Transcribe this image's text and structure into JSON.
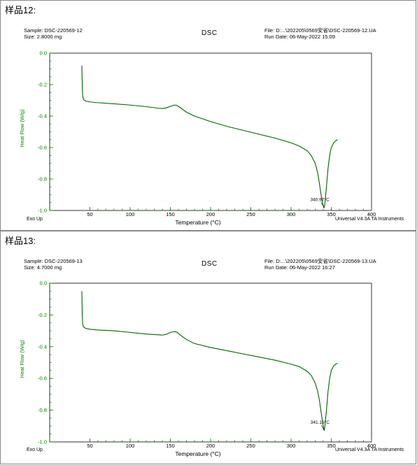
{
  "panels": [
    {
      "sample_title": "样品12:",
      "header_left": [
        "Sample: DSC-220569-12",
        "Size:  2.8000 mg"
      ],
      "header_center": "DSC",
      "header_right": [
        "File: D:...\\202205\\0569安省\\DSC-220569-12.UA",
        "Run Date: 06-May-2022 15:09"
      ],
      "footer_left": "Exo Up",
      "footer_right": "Universal V4.3A TA Instruments"
    },
    {
      "sample_title": "样品13:",
      "header_left": [
        "Sample: DSC-220569-13",
        "Size:  4.7000 mg"
      ],
      "header_center": "DSC",
      "header_right": [
        "File: D:...\\202205\\0569安省\\DSC-220569-13.UA",
        "Run Date: 06-May-2022 16:27"
      ],
      "footer_left": "Exo Up",
      "footer_right": "Universal V4.3A TA Instruments"
    }
  ],
  "chart_data": [
    {
      "type": "line",
      "title": "DSC",
      "xlabel": "Temperature (°C)",
      "ylabel": "Heat Flow (W/g)",
      "xlim": [
        0,
        400
      ],
      "ylim": [
        -1.0,
        0.0
      ],
      "xticks": [
        50,
        100,
        150,
        200,
        250,
        300,
        350,
        400
      ],
      "yticks": [
        0.0,
        -0.2,
        -0.4,
        -0.6,
        -0.8,
        -1.0
      ],
      "ytick_labels": [
        "0.0",
        "-0.2",
        "-0.4",
        "-0.6",
        "-0.8",
        "-1.0"
      ],
      "grid": false,
      "color": "#006400",
      "series": [
        {
          "x": [
            40,
            40.5,
            41,
            42,
            45,
            50,
            60,
            80,
            100,
            120,
            135,
            140,
            145,
            150,
            155,
            158,
            162,
            170,
            180,
            200,
            220,
            240,
            260,
            280,
            300,
            310,
            320,
            325,
            330,
            333,
            335,
            337,
            339,
            340.97,
            342,
            344,
            346,
            348,
            350,
            353,
            356,
            358
          ],
          "y": [
            -0.08,
            -0.2,
            -0.27,
            -0.295,
            -0.305,
            -0.31,
            -0.315,
            -0.322,
            -0.33,
            -0.34,
            -0.35,
            -0.352,
            -0.348,
            -0.338,
            -0.33,
            -0.332,
            -0.345,
            -0.375,
            -0.4,
            -0.435,
            -0.465,
            -0.49,
            -0.515,
            -0.54,
            -0.57,
            -0.59,
            -0.62,
            -0.65,
            -0.7,
            -0.76,
            -0.82,
            -0.89,
            -0.95,
            -0.985,
            -0.96,
            -0.85,
            -0.73,
            -0.65,
            -0.6,
            -0.57,
            -0.555,
            -0.55
          ]
        }
      ],
      "annotations": [
        {
          "text": "340.97°C",
          "x": 340.97,
          "y": -0.985
        }
      ]
    },
    {
      "type": "line",
      "title": "DSC",
      "xlabel": "Temperature (°C)",
      "ylabel": "Heat Flow (W/g)",
      "xlim": [
        0,
        400
      ],
      "ylim": [
        -1.0,
        0.0
      ],
      "xticks": [
        50,
        100,
        150,
        200,
        250,
        300,
        350,
        400
      ],
      "yticks": [
        0.0,
        -0.2,
        -0.4,
        -0.6,
        -0.8,
        -1.0
      ],
      "ytick_labels": [
        "0.0",
        "-0.2",
        "-0.4",
        "-0.6",
        "-0.8",
        "-1.0"
      ],
      "grid": false,
      "color": "#006400",
      "series": [
        {
          "x": [
            40,
            40.5,
            41,
            42,
            45,
            50,
            60,
            80,
            100,
            120,
            135,
            140,
            145,
            150,
            155,
            158,
            162,
            170,
            180,
            200,
            220,
            240,
            260,
            280,
            300,
            310,
            320,
            325,
            330,
            333,
            335,
            337,
            339,
            341.15,
            342,
            344,
            346,
            348,
            350,
            353,
            356,
            358
          ],
          "y": [
            -0.05,
            -0.2,
            -0.255,
            -0.275,
            -0.285,
            -0.29,
            -0.295,
            -0.3,
            -0.31,
            -0.32,
            -0.325,
            -0.327,
            -0.322,
            -0.31,
            -0.305,
            -0.308,
            -0.325,
            -0.355,
            -0.38,
            -0.405,
            -0.425,
            -0.445,
            -0.465,
            -0.485,
            -0.51,
            -0.525,
            -0.555,
            -0.58,
            -0.63,
            -0.68,
            -0.73,
            -0.8,
            -0.87,
            -0.93,
            -0.905,
            -0.8,
            -0.68,
            -0.6,
            -0.55,
            -0.52,
            -0.508,
            -0.505
          ]
        }
      ],
      "annotations": [
        {
          "text": "341.15°C",
          "x": 341.15,
          "y": -0.93
        }
      ]
    }
  ]
}
